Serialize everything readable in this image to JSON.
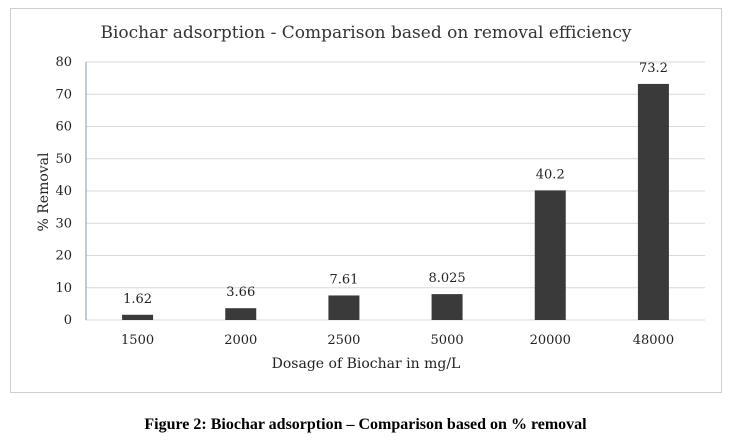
{
  "chart_data": {
    "type": "bar",
    "title": "Biochar adsorption - Comparison based on removal efficiency",
    "xlabel": "Dosage of Biochar in mg/L",
    "ylabel": "% Removal",
    "categories": [
      "1500",
      "2000",
      "2500",
      "5000",
      "20000",
      "48000"
    ],
    "values": [
      1.62,
      3.66,
      7.61,
      8.025,
      40.2,
      73.2
    ],
    "data_labels": [
      "1.62",
      "3.66",
      "7.61",
      "8.025",
      "40.2",
      "73.2"
    ],
    "ylim": [
      0,
      80
    ],
    "yticks": [
      0,
      10,
      20,
      30,
      40,
      50,
      60,
      70,
      80
    ],
    "grid": true,
    "bar_color": "#3a3a3a",
    "grid_color": "#d9d9d9"
  },
  "caption": "Figure 2: Biochar adsorption – Comparison based on % removal"
}
